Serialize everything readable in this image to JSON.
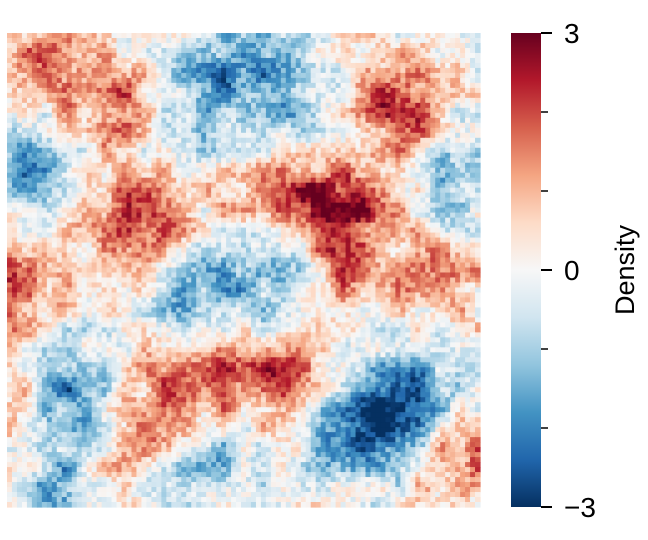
{
  "chart_data": {
    "type": "heatmap",
    "title": "",
    "xlabel": "",
    "ylabel": "",
    "colorbar": {
      "label": "Density",
      "range": [
        -3,
        3
      ],
      "major_ticks": [
        3,
        0,
        -3
      ],
      "major_tick_labels": [
        "3",
        "0",
        "−3"
      ],
      "minor_ticks": [
        2,
        1,
        -1,
        -2
      ],
      "colormap": "RdBu_r",
      "colormap_stops": [
        "#053061",
        "#2166ac",
        "#4393c3",
        "#92c5de",
        "#d1e5f0",
        "#f7f7f7",
        "#fddbc7",
        "#f4a582",
        "#d6604d",
        "#b2182b",
        "#67001f"
      ]
    },
    "field": {
      "description_units": "density",
      "value_range": [
        -3,
        3
      ],
      "hotspots": [
        {
          "cx": 0.72,
          "cy": 0.36,
          "amp": 2.6
        },
        {
          "cx": 0.56,
          "cy": 0.36,
          "amp": 2.0
        },
        {
          "cx": 0.28,
          "cy": 0.4,
          "amp": 2.0
        },
        {
          "cx": 0.84,
          "cy": 0.16,
          "amp": 2.0
        },
        {
          "cx": 0.24,
          "cy": 0.15,
          "amp": 1.6
        },
        {
          "cx": 0.08,
          "cy": 0.08,
          "amp": 1.4
        },
        {
          "cx": 0.4,
          "cy": 0.72,
          "amp": 2.2
        },
        {
          "cx": 0.58,
          "cy": 0.74,
          "amp": 1.8
        },
        {
          "cx": 0.02,
          "cy": 0.55,
          "amp": 1.8
        },
        {
          "cx": 0.02,
          "cy": 0.8,
          "amp": 1.7
        },
        {
          "cx": 0.94,
          "cy": 0.88,
          "amp": 1.7
        },
        {
          "cx": 0.68,
          "cy": 0.54,
          "amp": 1.2
        },
        {
          "cx": 0.92,
          "cy": 0.5,
          "amp": 1.1
        },
        {
          "cx": 0.26,
          "cy": 0.86,
          "amp": 1.4
        },
        {
          "cx": 0.84,
          "cy": 0.78,
          "amp": -2.8
        },
        {
          "cx": 0.74,
          "cy": 0.85,
          "amp": -2.2
        },
        {
          "cx": 0.13,
          "cy": 0.77,
          "amp": -2.3
        },
        {
          "cx": 0.55,
          "cy": 0.49,
          "amp": -2.0
        },
        {
          "cx": 0.03,
          "cy": 0.28,
          "amp": -1.9
        },
        {
          "cx": 0.5,
          "cy": 0.05,
          "amp": -1.6
        },
        {
          "cx": 0.38,
          "cy": 0.15,
          "amp": -1.2
        },
        {
          "cx": 0.95,
          "cy": 0.3,
          "amp": -1.5
        },
        {
          "cx": 0.38,
          "cy": 0.58,
          "amp": -1.3
        },
        {
          "cx": 0.43,
          "cy": 0.91,
          "amp": -1.4
        },
        {
          "cx": 0.12,
          "cy": 0.96,
          "amp": -1.4
        },
        {
          "cx": 0.62,
          "cy": 0.18,
          "amp": -1.0
        }
      ]
    }
  }
}
